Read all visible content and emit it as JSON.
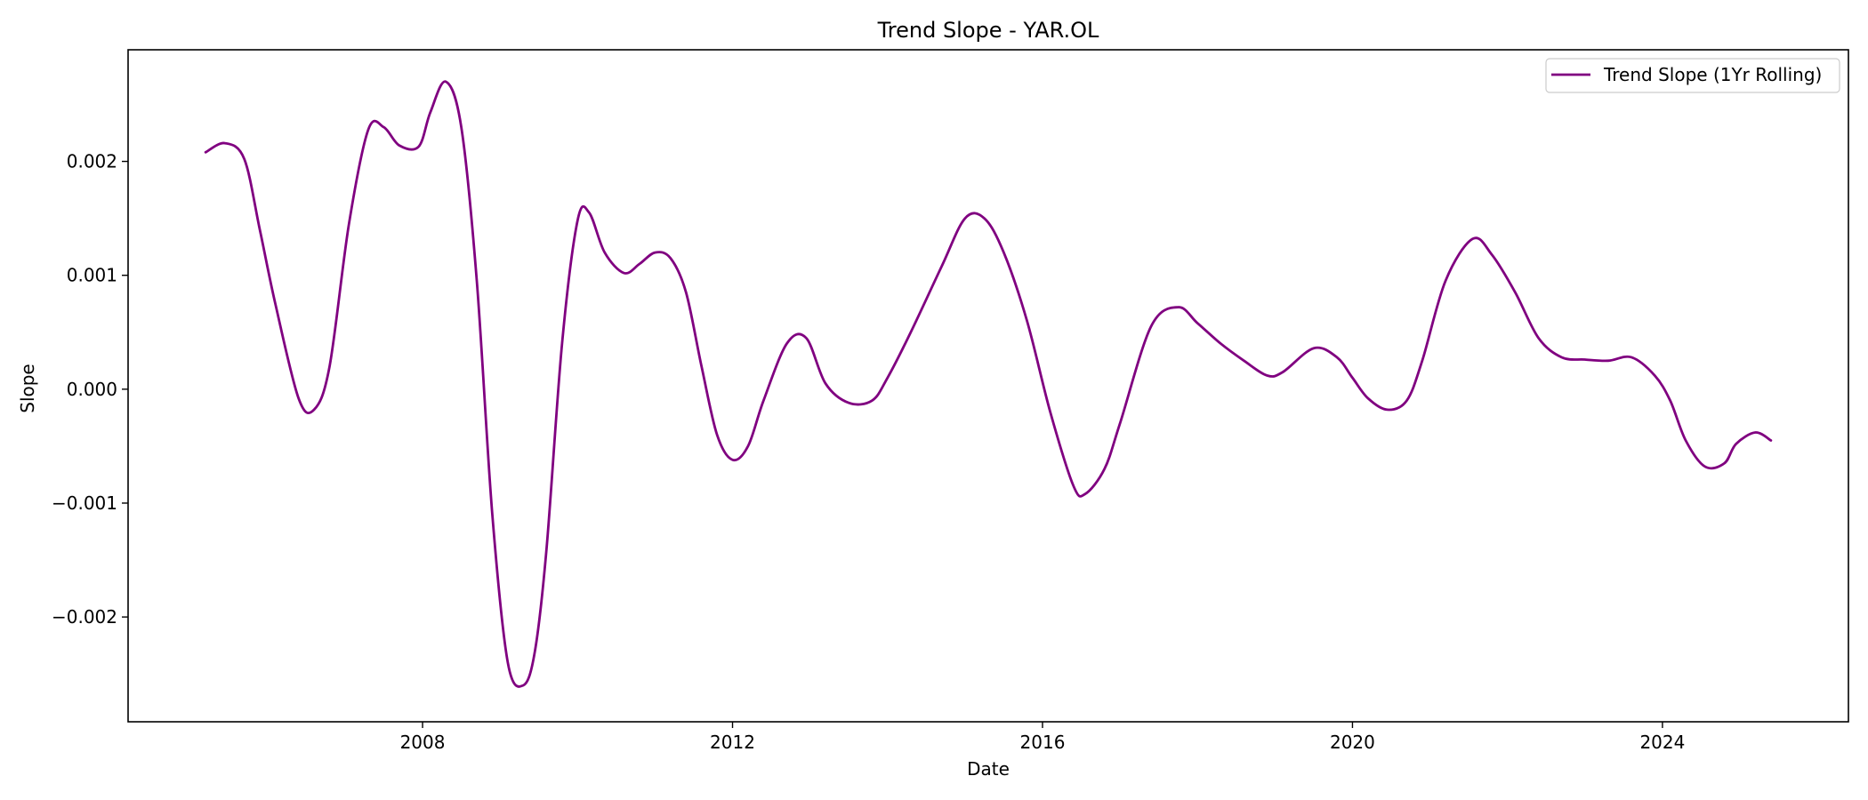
{
  "chart_data": {
    "type": "line",
    "title": "Trend Slope - YAR.OL",
    "xlabel": "Date",
    "ylabel": "Slope",
    "xlim": [
      2004.2,
      2026.4
    ],
    "ylim": [
      -0.00292,
      0.00298
    ],
    "x_ticks": [
      2008,
      2012,
      2016,
      2020,
      2024
    ],
    "x_tick_labels": [
      "2008",
      "2012",
      "2016",
      "2020",
      "2024"
    ],
    "y_ticks": [
      -0.002,
      -0.001,
      0.0,
      0.001,
      0.002
    ],
    "y_tick_labels": [
      "−0.002",
      "−0.001",
      "0.000",
      "0.001",
      "0.002"
    ],
    "grid": false,
    "legend_position": "top-right",
    "series": [
      {
        "name": "Trend Slope (1Yr Rolling)",
        "color": "#800080",
        "x": [
          2005.2,
          2005.45,
          2005.7,
          2005.9,
          2006.1,
          2006.4,
          2006.6,
          2006.8,
          2007.05,
          2007.3,
          2007.5,
          2007.7,
          2007.95,
          2008.1,
          2008.3,
          2008.5,
          2008.7,
          2008.9,
          2009.1,
          2009.3,
          2009.45,
          2009.6,
          2009.8,
          2010.0,
          2010.15,
          2010.35,
          2010.6,
          2010.8,
          2011.0,
          2011.2,
          2011.4,
          2011.6,
          2011.8,
          2012.0,
          2012.2,
          2012.4,
          2012.7,
          2012.95,
          2013.2,
          2013.5,
          2013.8,
          2014.0,
          2014.3,
          2014.7,
          2015.0,
          2015.25,
          2015.5,
          2015.8,
          2016.1,
          2016.4,
          2016.55,
          2016.8,
          2017.0,
          2017.4,
          2017.75,
          2018.0,
          2018.3,
          2018.6,
          2018.9,
          2019.1,
          2019.5,
          2019.8,
          2020.0,
          2020.2,
          2020.45,
          2020.7,
          2020.9,
          2021.2,
          2021.55,
          2021.8,
          2022.1,
          2022.4,
          2022.7,
          2023.0,
          2023.3,
          2023.6,
          2023.9,
          2024.1,
          2024.3,
          2024.55,
          2024.8,
          2024.95,
          2025.2,
          2025.4
        ],
        "y": [
          0.00208,
          0.00216,
          0.00202,
          0.0014,
          0.00075,
          -8e-05,
          -0.00018,
          0.0002,
          0.00145,
          0.00228,
          0.0023,
          0.00214,
          0.00213,
          0.00243,
          0.0027,
          0.0023,
          0.00095,
          -0.0011,
          -0.0024,
          -0.0026,
          -0.0023,
          -0.0014,
          0.0004,
          0.00148,
          0.00155,
          0.0012,
          0.00102,
          0.0011,
          0.0012,
          0.00115,
          0.00085,
          0.0002,
          -0.0004,
          -0.00062,
          -0.0005,
          -0.0001,
          0.0004,
          0.00045,
          5e-05,
          -0.00012,
          -0.0001,
          0.0001,
          0.0005,
          0.00108,
          0.0015,
          0.0015,
          0.0012,
          0.0006,
          -0.0002,
          -0.00085,
          -0.00092,
          -0.0007,
          -0.0003,
          0.00055,
          0.00072,
          0.00058,
          0.0004,
          0.00025,
          0.00012,
          0.00015,
          0.00036,
          0.00028,
          0.0001,
          -8e-05,
          -0.00018,
          -0.0001,
          0.00025,
          0.00095,
          0.00132,
          0.00118,
          0.00085,
          0.00045,
          0.00028,
          0.00026,
          0.00025,
          0.00028,
          0.00012,
          -0.0001,
          -0.00045,
          -0.00068,
          -0.00065,
          -0.00048,
          -0.00038,
          -0.00045
        ]
      }
    ]
  }
}
